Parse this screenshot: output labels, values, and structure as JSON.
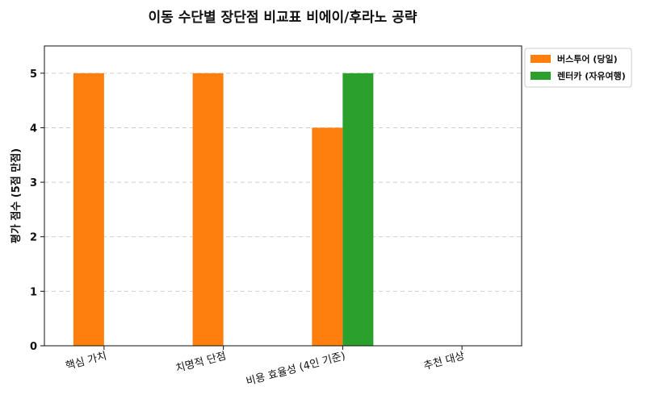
{
  "chart_data": {
    "type": "bar",
    "title": "이동 수단별 장단점 비교표 비에이/후라노 공략",
    "xlabel": "",
    "ylabel": "평가 점수 (5점 만점)",
    "categories": [
      "핵심 가치",
      "치명적 단점",
      "비용 효율성 (4인 기준)",
      "추천 대상"
    ],
    "series": [
      {
        "name": "버스투어 (당일)",
        "values": [
          5,
          5,
          4,
          0
        ],
        "color": "#ff7f0e"
      },
      {
        "name": "렌터카 (자유여행)",
        "values": [
          0,
          0,
          5,
          0
        ],
        "color": "#2ca02c"
      }
    ],
    "ylim": [
      0,
      5.5
    ],
    "yticks": [
      0,
      1,
      2,
      3,
      4,
      5
    ],
    "grid": "y-dashed",
    "legend": "outside-top-right"
  }
}
